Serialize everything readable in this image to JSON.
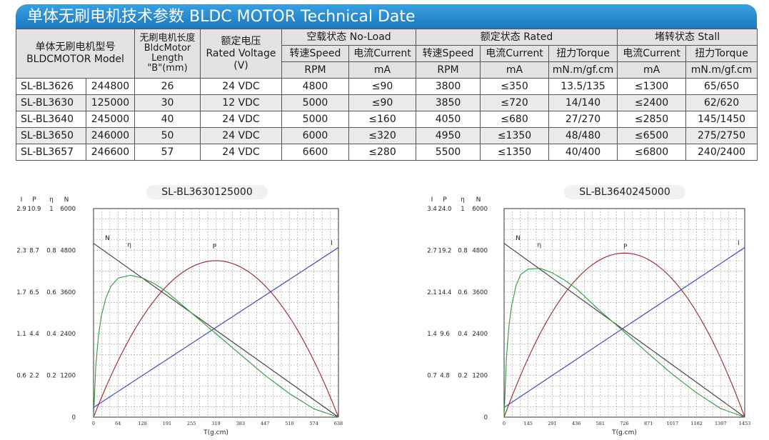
{
  "header": {
    "title": "单体无刷电机技术参数  BLDC MOTOR Technical Date"
  },
  "table": {
    "model_header": [
      "单体无刷电机型号",
      "BLDCMOTOR Model"
    ],
    "length_header": [
      "无刷电机长度",
      "BldcMotor",
      "Length",
      "\"B\"(mm)"
    ],
    "voltage_header": [
      "额定电压",
      "Rated Voltage",
      "(V)"
    ],
    "groups": [
      "空载状态 No-Load",
      "额定状态 Rated",
      "堵转状态 Stall"
    ],
    "subheaders": [
      "转速Speed",
      "电流Current",
      "转速Speed",
      "电流Current",
      "扭力Torque",
      "电流Current",
      "扭力Torque"
    ],
    "units": [
      "RPM",
      "mA",
      "RPM",
      "mA",
      "mN.m/gf.cm",
      "mA",
      "mN.m/gf.cm"
    ],
    "rows": [
      [
        "SL-BL3626",
        "244800",
        "26",
        "24 VDC",
        "4800",
        "≤90",
        "3800",
        "≤350",
        "13.5/135",
        "≤1300",
        "65/650"
      ],
      [
        "SL-BL3630",
        "125000",
        "30",
        "12 VDC",
        "5000",
        "≤90",
        "3850",
        "≤720",
        "14/140",
        "≤2400",
        "62/620"
      ],
      [
        "SL-BL3640",
        "245000",
        "40",
        "24 VDC",
        "5000",
        "≤160",
        "4050",
        "≤680",
        "27/270",
        "≤2850",
        "145/1450"
      ],
      [
        "SL-BL3650",
        "246000",
        "50",
        "24 VDC",
        "6000",
        "≤320",
        "4950",
        "≤1350",
        "48/480",
        "≤6500",
        "275/2750"
      ],
      [
        "SL-BL3657",
        "246600",
        "57",
        "24 VDC",
        "6600",
        "≤280",
        "5500",
        "≤1350",
        "40/400",
        "≤6800",
        "240/2400"
      ]
    ]
  },
  "chart_data": [
    {
      "type": "line",
      "title": "SL-BL3630125000",
      "xlabel": "T(g.cm)",
      "x_ticks": [
        "0",
        "64",
        "128",
        "191",
        "255",
        "319",
        "383",
        "447",
        "510",
        "574",
        "638"
      ],
      "axis_headers": [
        "I",
        "P",
        "η",
        "N"
      ],
      "y_ticks": [
        [
          "2.9",
          "10.9",
          "1",
          "6000"
        ],
        [
          "2.3",
          "8.7",
          "0.8",
          "4800"
        ],
        [
          "1.7",
          "6.5",
          "0.6",
          "3600"
        ],
        [
          "1.1",
          "4.4",
          "0.4",
          "2400"
        ],
        [
          "0.6",
          "2.2",
          "0.2",
          "1200"
        ],
        [
          "",
          "",
          "",
          "0"
        ]
      ],
      "xlim": [
        0,
        638
      ],
      "ymax": 6000,
      "series": [
        {
          "name": "N",
          "color": "#3a3a3a",
          "x": [
            0,
            638
          ],
          "y": [
            5000,
            0
          ]
        },
        {
          "name": "I",
          "color": "#3a3ac0",
          "x": [
            0,
            638
          ],
          "y": [
            280,
            4880
          ]
        },
        {
          "name": "P",
          "color": "#a0202a",
          "x": [
            0,
            64,
            128,
            191,
            255,
            319,
            383,
            447,
            510,
            574,
            638
          ],
          "y": [
            0,
            1620,
            2880,
            3780,
            4320,
            4500,
            4320,
            3780,
            2880,
            1620,
            0
          ]
        },
        {
          "name": "η",
          "color": "#2f9a3a",
          "x": [
            0,
            6,
            13,
            20,
            32,
            45,
            64,
            96,
            128,
            160,
            191,
            255,
            319,
            383,
            447,
            510,
            574,
            638
          ],
          "y": [
            0,
            1500,
            2350,
            2900,
            3420,
            3760,
            4000,
            4080,
            4000,
            3830,
            3600,
            3000,
            2400,
            1800,
            1200,
            680,
            240,
            0
          ]
        }
      ],
      "labels": [
        {
          "text": "N",
          "x": 30,
          "y": 5100
        },
        {
          "text": "η",
          "x": 88,
          "y": 4900
        },
        {
          "text": "P",
          "x": 310,
          "y": 4850
        },
        {
          "text": "I",
          "x": 618,
          "y": 4950
        }
      ]
    },
    {
      "type": "line",
      "title": "SL-BL3640245000",
      "xlabel": "T(g.cm)",
      "x_ticks": [
        "0",
        "145",
        "291",
        "436",
        "581",
        "726",
        "871",
        "1017",
        "1162",
        "1307",
        "1453"
      ],
      "axis_headers": [
        "I",
        "P",
        "η",
        "N"
      ],
      "y_ticks": [
        [
          "3.4",
          "24.0",
          "1",
          "6000"
        ],
        [
          "2.7",
          "19.2",
          "0.8",
          "4800"
        ],
        [
          "2.1",
          "14.4",
          "0.6",
          "3600"
        ],
        [
          "1.4",
          "9.6",
          "0.4",
          "2400"
        ],
        [
          "0.7",
          "4.8",
          "0.2",
          "1200"
        ],
        [
          "",
          "",
          "",
          "0"
        ]
      ],
      "xlim": [
        0,
        1453
      ],
      "ymax": 6000,
      "series": [
        {
          "name": "N",
          "color": "#3a3a3a",
          "x": [
            0,
            1453
          ],
          "y": [
            5000,
            0
          ]
        },
        {
          "name": "I",
          "color": "#3a3ac0",
          "x": [
            0,
            1453
          ],
          "y": [
            280,
            4880
          ]
        },
        {
          "name": "P",
          "color": "#a0202a",
          "x": [
            0,
            145,
            291,
            436,
            581,
            726,
            871,
            1017,
            1162,
            1307,
            1453
          ],
          "y": [
            0,
            1700,
            3020,
            3960,
            4530,
            4720,
            4530,
            3960,
            3020,
            1700,
            0
          ]
        },
        {
          "name": "η",
          "color": "#2f9a3a",
          "x": [
            0,
            14,
            30,
            45,
            73,
            100,
            145,
            220,
            291,
            363,
            436,
            581,
            726,
            871,
            1017,
            1162,
            1307,
            1453
          ],
          "y": [
            0,
            1700,
            2650,
            3200,
            3800,
            4100,
            4260,
            4280,
            4150,
            3950,
            3700,
            3050,
            2450,
            1830,
            1230,
            700,
            250,
            0
          ]
        }
      ],
      "labels": [
        {
          "text": "N",
          "x": 70,
          "y": 5100
        },
        {
          "text": "η",
          "x": 200,
          "y": 4900
        },
        {
          "text": "P",
          "x": 720,
          "y": 4850
        },
        {
          "text": "I",
          "x": 1410,
          "y": 4950
        }
      ]
    }
  ]
}
